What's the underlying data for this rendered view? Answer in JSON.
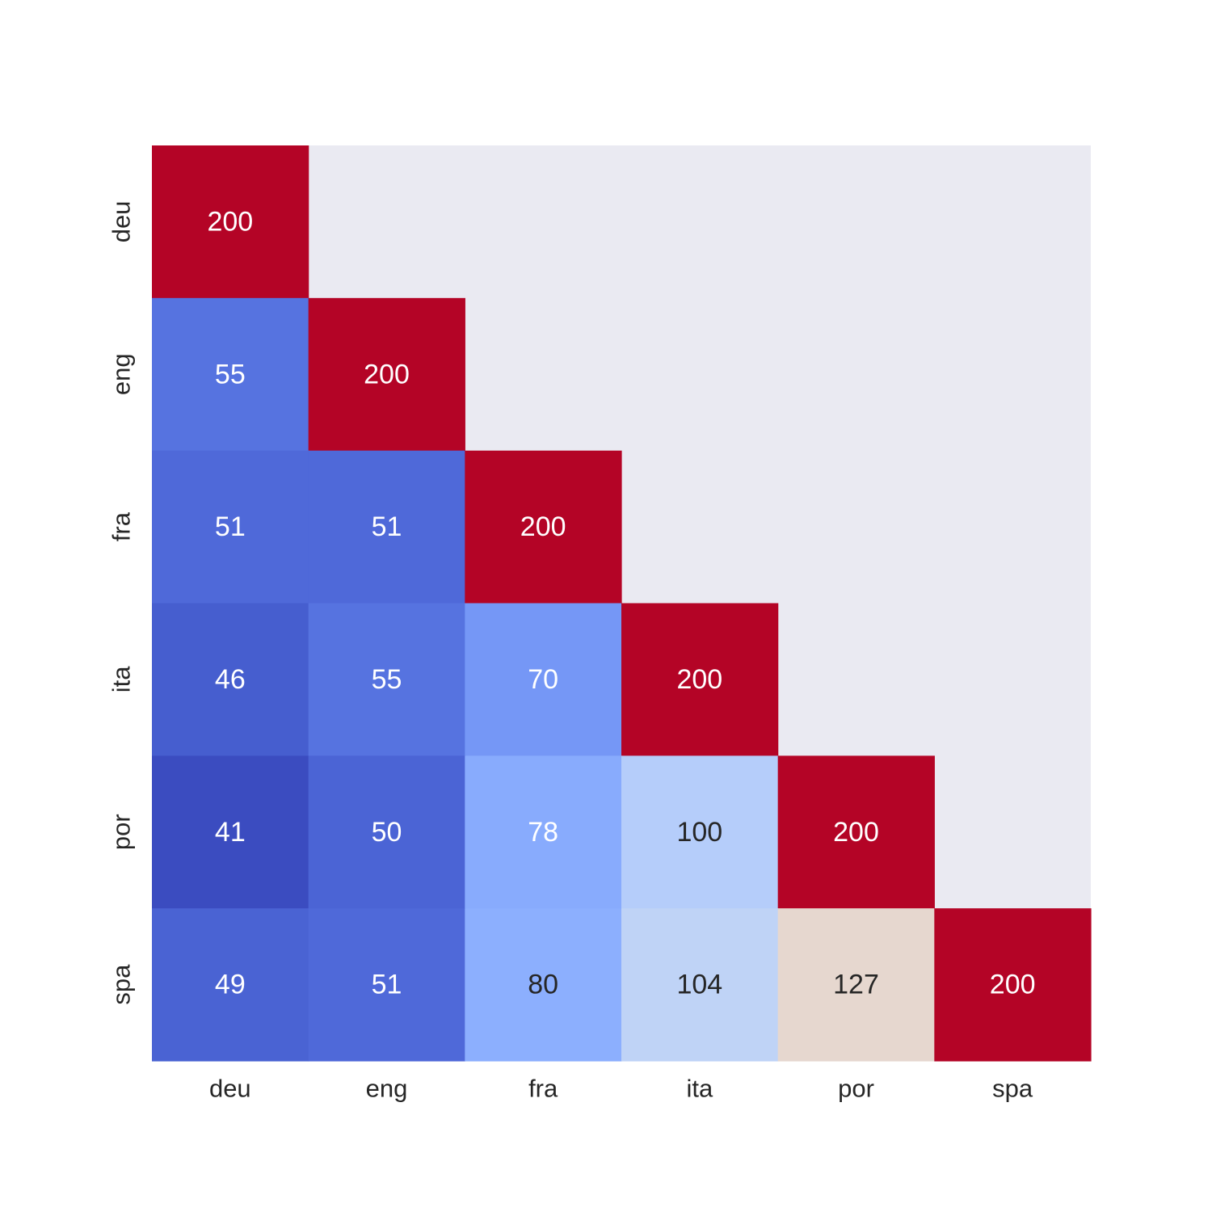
{
  "chart_data": {
    "type": "heatmap",
    "title": "",
    "xlabel": "",
    "ylabel": "",
    "x_categories": [
      "deu",
      "eng",
      "fra",
      "ita",
      "por",
      "spa"
    ],
    "y_categories": [
      "deu",
      "eng",
      "fra",
      "ita",
      "por",
      "spa"
    ],
    "mask": "upper-triangle",
    "values": [
      [
        200,
        null,
        null,
        null,
        null,
        null
      ],
      [
        55,
        200,
        null,
        null,
        null,
        null
      ],
      [
        51,
        51,
        200,
        null,
        null,
        null
      ],
      [
        46,
        55,
        70,
        200,
        null,
        null
      ],
      [
        41,
        50,
        78,
        100,
        200,
        null
      ],
      [
        49,
        51,
        80,
        104,
        127,
        200
      ]
    ],
    "colormap": "coolwarm",
    "value_range": [
      41,
      200
    ],
    "annotations": true,
    "colorbar": false,
    "grid": false,
    "colors": {
      "masked_background": "#eaeaf2",
      "text_light": "#ffffff",
      "text_dark": "#262626",
      "cells": [
        [
          "#b40426",
          null,
          null,
          null,
          null,
          null
        ],
        [
          "#5673e0",
          "#b40426",
          null,
          null,
          null,
          null
        ],
        [
          "#4f69d9",
          "#4f69d9",
          "#b40426",
          null,
          null,
          null
        ],
        [
          "#465ecf",
          "#5673e0",
          "#7597f6",
          "#b40426",
          null,
          null
        ],
        [
          "#3b4cc0",
          "#4b64d5",
          "#88abfd",
          "#b5cdfa",
          "#b40426",
          null
        ],
        [
          "#4a63d3",
          "#4f69d9",
          "#8caffe",
          "#bfd3f6",
          "#e6d7cf",
          "#b40426"
        ]
      ],
      "text": [
        [
          "#ffffff",
          null,
          null,
          null,
          null,
          null
        ],
        [
          "#ffffff",
          "#ffffff",
          null,
          null,
          null,
          null
        ],
        [
          "#ffffff",
          "#ffffff",
          "#ffffff",
          null,
          null,
          null
        ],
        [
          "#ffffff",
          "#ffffff",
          "#ffffff",
          "#ffffff",
          null,
          null
        ],
        [
          "#ffffff",
          "#ffffff",
          "#ffffff",
          "#262626",
          "#ffffff",
          null
        ],
        [
          "#ffffff",
          "#ffffff",
          "#262626",
          "#262626",
          "#262626",
          "#ffffff"
        ]
      ]
    }
  }
}
